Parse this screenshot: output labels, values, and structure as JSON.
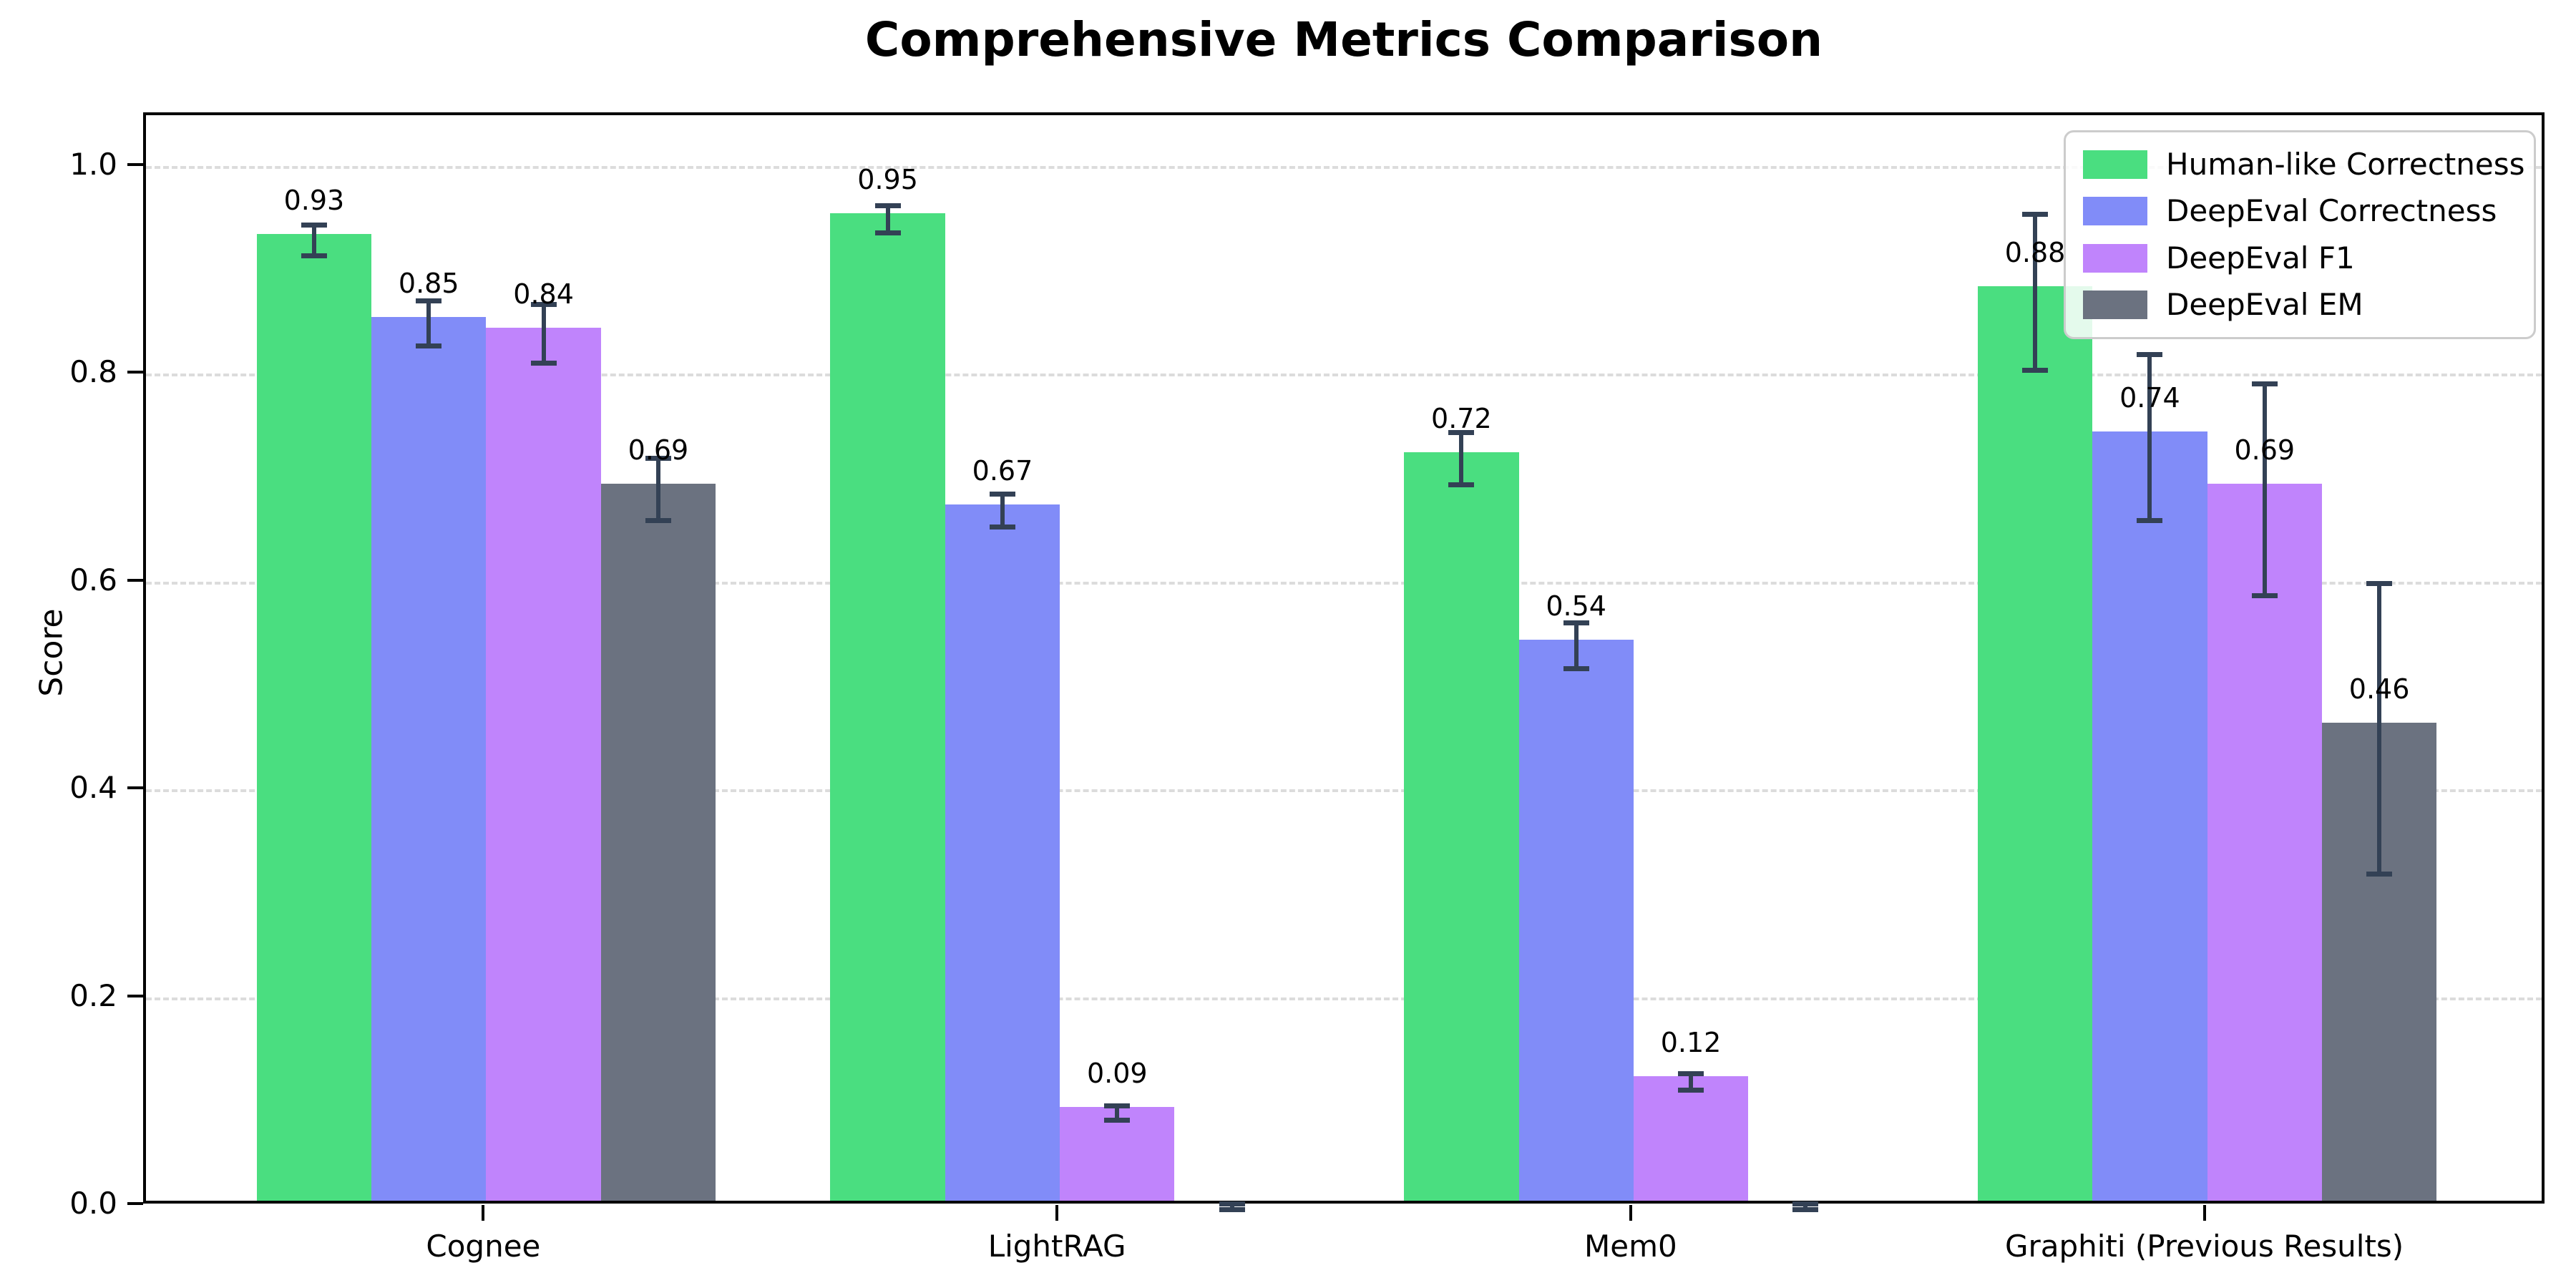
{
  "chart_data": {
    "type": "bar",
    "title": "Comprehensive Metrics Comparison",
    "ylabel": "Score",
    "xlabel": "",
    "categories": [
      "Cognee",
      "LightRAG",
      "Mem0",
      "Graphiti (Previous Results)"
    ],
    "series": [
      {
        "name": "Human-like Correctness",
        "color": "#4ade80",
        "values": [
          0.93,
          0.95,
          0.72,
          0.88
        ],
        "errors": [
          0.015,
          0.013,
          0.025,
          0.075
        ],
        "labels": [
          "0.93",
          "0.95",
          "0.72",
          "0.88"
        ]
      },
      {
        "name": "DeepEval Correctness",
        "color": "#818cf8",
        "values": [
          0.85,
          0.67,
          0.54,
          0.74
        ],
        "errors": [
          0.022,
          0.016,
          0.022,
          0.08
        ],
        "labels": [
          "0.85",
          "0.67",
          "0.54",
          "0.74"
        ]
      },
      {
        "name": "DeepEval F1",
        "color": "#c084fc",
        "values": [
          0.84,
          0.09,
          0.12,
          0.69
        ],
        "errors": [
          0.028,
          0.007,
          0.008,
          0.102
        ],
        "labels": [
          "0.84",
          "0.09",
          "0.12",
          "0.69"
        ]
      },
      {
        "name": "DeepEval EM",
        "color": "#6b7280",
        "values": [
          0.69,
          0.0,
          0.0,
          0.46
        ],
        "errors": [
          0.03,
          0.003,
          0.003,
          0.14
        ],
        "labels": [
          "0.69",
          "",
          "",
          "0.46"
        ]
      }
    ],
    "yticks": [
      "0.0",
      "0.2",
      "0.4",
      "0.6",
      "0.8",
      "1.0"
    ],
    "ylim": [
      0,
      1.05
    ],
    "grid": "horizontal-dashed",
    "legend_position": "upper right",
    "error_bar_color": "#334155",
    "grid_color": "#dcdcdc",
    "axis_color": "#000000"
  }
}
